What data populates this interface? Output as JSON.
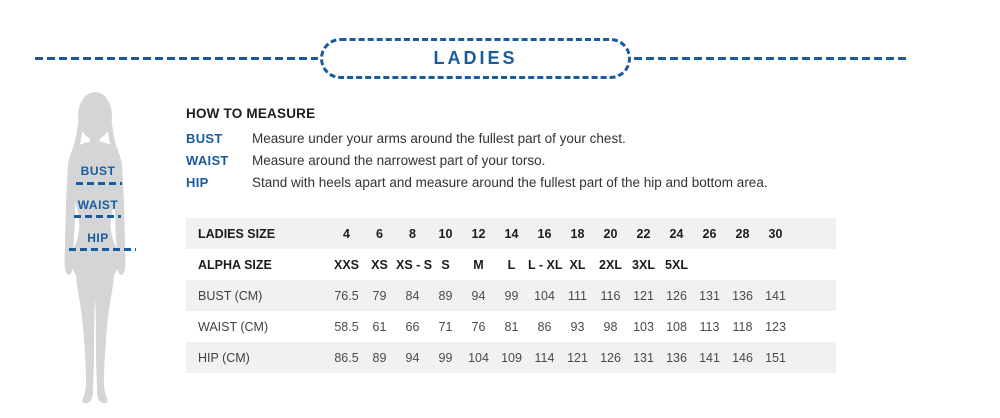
{
  "header": {
    "title": "LADIES"
  },
  "figure": {
    "labels": [
      "BUST",
      "WAIST",
      "HIP"
    ]
  },
  "how_to_measure": {
    "title": "HOW TO MEASURE",
    "items": [
      {
        "term": "BUST",
        "description": "Measure under your arms around the fullest part of your chest."
      },
      {
        "term": "WAIST",
        "description": "Measure around the narrowest part of your torso."
      },
      {
        "term": "HIP",
        "description": "Stand with heels apart and measure around the fullest part of the hip and bottom area."
      }
    ]
  },
  "chart_data": {
    "type": "table",
    "title": "LADIES",
    "rows": [
      {
        "label": "LADIES SIZE",
        "header": true,
        "values": [
          "4",
          "6",
          "8",
          "10",
          "12",
          "14",
          "16",
          "18",
          "20",
          "22",
          "24",
          "26",
          "28",
          "30"
        ]
      },
      {
        "label": "ALPHA SIZE",
        "header": true,
        "values": [
          "XXS",
          "XS",
          "XS - S",
          "S",
          "M",
          "L",
          "L - XL",
          "XL",
          "2XL",
          "3XL",
          "5XL",
          "",
          "",
          ""
        ]
      },
      {
        "label": "BUST (CM)",
        "header": false,
        "values": [
          "76.5",
          "79",
          "84",
          "89",
          "94",
          "99",
          "104",
          "111",
          "116",
          "121",
          "126",
          "131",
          "136",
          "141"
        ]
      },
      {
        "label": "WAIST (CM)",
        "header": false,
        "values": [
          "58.5",
          "61",
          "66",
          "71",
          "76",
          "81",
          "86",
          "93",
          "98",
          "103",
          "108",
          "113",
          "118",
          "123"
        ]
      },
      {
        "label": "HIP (CM)",
        "header": false,
        "values": [
          "86.5",
          "89",
          "94",
          "99",
          "104",
          "109",
          "114",
          "121",
          "126",
          "131",
          "136",
          "141",
          "146",
          "151"
        ]
      }
    ]
  },
  "colors": {
    "accent_blue": "#1a5b9e",
    "silhouette_gray": "#d3d5d6",
    "row_alt_bg": "#f1f1f2"
  }
}
